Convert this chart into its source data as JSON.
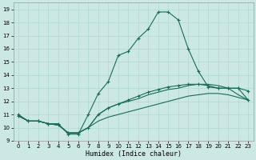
{
  "xlabel": "Humidex (Indice chaleur)",
  "bg_color": "#cce8e4",
  "grid_color": "#b0d8d0",
  "line_color": "#1a6b5a",
  "xlim": [
    -0.5,
    23.5
  ],
  "ylim": [
    9,
    19.5
  ],
  "yticks": [
    9,
    10,
    11,
    12,
    13,
    14,
    15,
    16,
    17,
    18,
    19
  ],
  "xticks": [
    0,
    1,
    2,
    3,
    4,
    5,
    6,
    7,
    8,
    9,
    10,
    11,
    12,
    13,
    14,
    15,
    16,
    17,
    18,
    19,
    20,
    21,
    22,
    23
  ],
  "line_main": [
    11.0,
    10.5,
    10.5,
    10.3,
    10.3,
    9.5,
    9.5,
    11.0,
    12.6,
    13.5,
    15.5,
    15.8,
    16.8,
    17.5,
    18.8,
    18.8,
    18.2,
    16.0,
    14.3,
    13.1,
    13.0,
    13.0,
    13.0,
    12.8
  ],
  "line_mid1": [
    10.9,
    10.5,
    10.5,
    10.3,
    10.2,
    9.6,
    9.6,
    10.0,
    11.0,
    11.5,
    11.8,
    12.1,
    12.4,
    12.7,
    12.9,
    13.1,
    13.2,
    13.3,
    13.3,
    13.2,
    13.0,
    13.0,
    13.0,
    12.1
  ],
  "line_mid2": [
    10.9,
    10.5,
    10.5,
    10.3,
    10.2,
    9.6,
    9.6,
    10.0,
    11.0,
    11.5,
    11.8,
    12.0,
    12.2,
    12.5,
    12.7,
    12.9,
    13.0,
    13.2,
    13.3,
    13.3,
    13.2,
    13.0,
    12.5,
    12.1
  ],
  "line_low": [
    10.9,
    10.5,
    10.5,
    10.3,
    10.2,
    9.6,
    9.6,
    10.0,
    10.5,
    10.8,
    11.0,
    11.2,
    11.4,
    11.6,
    11.8,
    12.0,
    12.2,
    12.4,
    12.5,
    12.6,
    12.6,
    12.5,
    12.3,
    12.1
  ]
}
